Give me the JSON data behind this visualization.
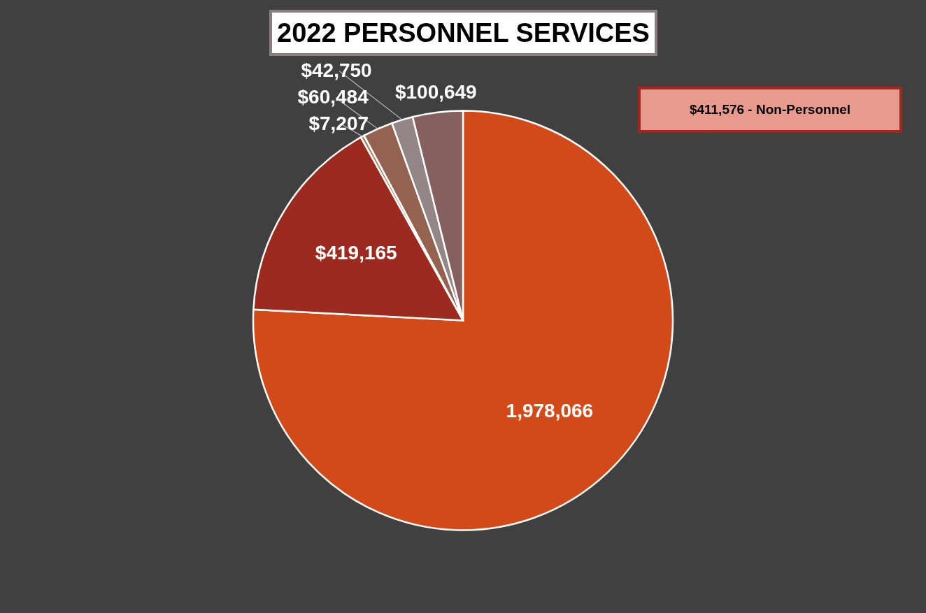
{
  "chart_data": {
    "type": "pie",
    "title": "2022 PERSONNEL SERVICES",
    "categories": [
      null,
      null,
      null,
      null,
      null,
      null
    ],
    "values": [
      1978066,
      419165,
      7207,
      60484,
      42750,
      100649
    ],
    "value_labels": [
      "1,978,066",
      "$419,165",
      "$7,207",
      "$60,484",
      "$42,750",
      "$100,649"
    ],
    "colors": [
      "#d24a17",
      "#9a2b1e",
      "#a08a62",
      "#956250",
      "#948586",
      "#86605e"
    ],
    "annotations": [
      "$411,576 - Non-Personnel"
    ],
    "legend": false
  }
}
